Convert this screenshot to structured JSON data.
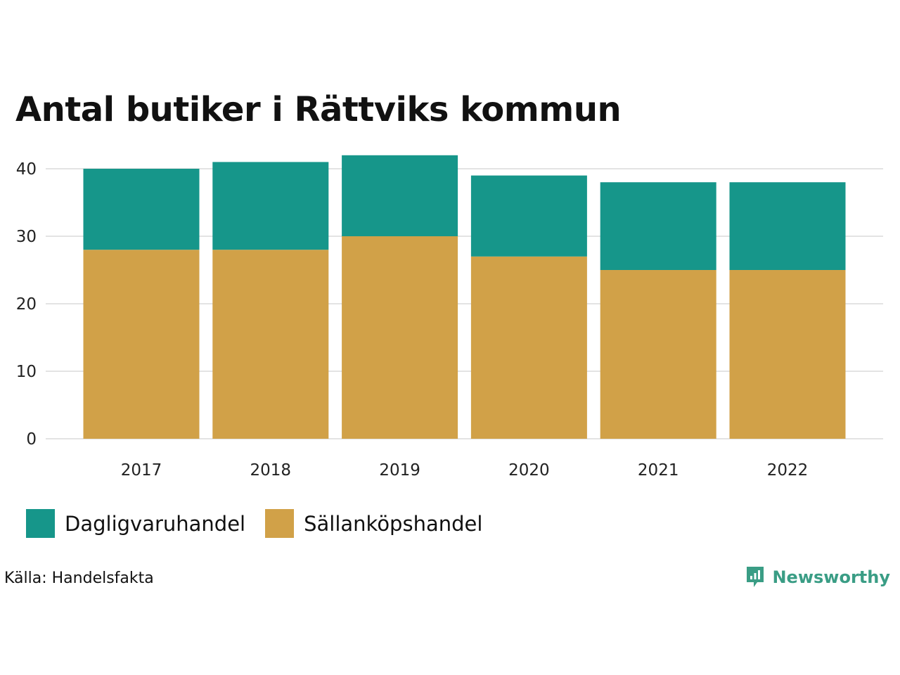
{
  "chart_data": {
    "type": "bar",
    "stacked": true,
    "title": "Antal butiker i Rättviks kommun",
    "xlabel": "",
    "ylabel": "",
    "categories": [
      "2017",
      "2018",
      "2019",
      "2020",
      "2021",
      "2022"
    ],
    "series": [
      {
        "name": "Sällanköpshandel",
        "color": "#d1a148",
        "values": [
          28,
          28,
          30,
          27,
          25,
          25
        ]
      },
      {
        "name": "Dagligvaruhandel",
        "color": "#16968a",
        "values": [
          12,
          13,
          12,
          12,
          13,
          13
        ]
      }
    ],
    "ylim": [
      0,
      42
    ],
    "yticks": [
      "0",
      "10",
      "20",
      "30",
      "40"
    ],
    "grid": true,
    "legend_position": "bottom-left"
  },
  "legend": {
    "items": [
      {
        "label": "Dagligvaruhandel",
        "color": "#16968a"
      },
      {
        "label": "Sällanköpshandel",
        "color": "#d1a148"
      }
    ]
  },
  "source": "Källa: Handelsfakta",
  "brand": {
    "name": "Newsworthy",
    "icon": "newsworthy-logo-icon",
    "color": "#3a9d85"
  },
  "colors": {
    "grid": "#e3e3e3",
    "text": "#111111"
  }
}
